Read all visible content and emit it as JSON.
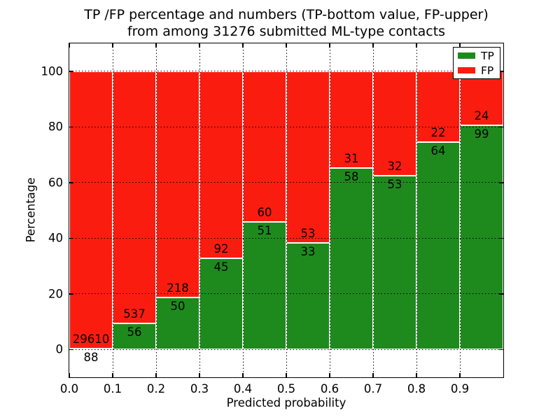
{
  "figure": {
    "title_line1": "TP /FP percentage and numbers (TP-bottom value, FP-upper)",
    "title_line2": "from among 31276 submitted ML-type contacts"
  },
  "legend": {
    "position": "upper right",
    "items": [
      {
        "label": "TP"
      },
      {
        "label": "FP"
      }
    ]
  },
  "colors": {
    "tp_green": "#1e8a1e",
    "fp_red": "#fb1c10",
    "grid": "#000000",
    "axis": "#000000",
    "background": "#ffffff",
    "text": "#000000"
  },
  "chart_data": {
    "type": "bar",
    "stacked": true,
    "normalized_to_percent": true,
    "title": "TP /FP percentage and numbers (TP-bottom value, FP-upper)\nfrom among 31276 submitted ML-type contacts",
    "xlabel": "Predicted probability",
    "ylabel": "Percentage",
    "xlim": [
      0.0,
      1.0
    ],
    "ylim": [
      -10,
      110
    ],
    "xticks": [
      "0.0",
      "0.1",
      "0.2",
      "0.3",
      "0.4",
      "0.5",
      "0.6",
      "0.7",
      "0.8",
      "0.9"
    ],
    "yticks": [
      "0",
      "20",
      "40",
      "60",
      "80",
      "100"
    ],
    "ytick_values": [
      0,
      20,
      40,
      60,
      80,
      100
    ],
    "xtick_values": [
      0.0,
      0.1,
      0.2,
      0.3,
      0.4,
      0.5,
      0.6,
      0.7,
      0.8,
      0.9
    ],
    "grid": true,
    "grid_style": "dotted",
    "legend_position": "upper right",
    "bin_width": 0.1,
    "bin_starts": [
      0.0,
      0.1,
      0.2,
      0.3,
      0.4,
      0.5,
      0.6,
      0.7,
      0.8,
      0.9
    ],
    "series": [
      {
        "name": "TP",
        "color": "green",
        "counts": [
          88,
          56,
          50,
          45,
          51,
          33,
          58,
          53,
          64,
          99
        ]
      },
      {
        "name": "FP",
        "color": "red",
        "counts": [
          29610,
          537,
          218,
          92,
          60,
          53,
          31,
          32,
          22,
          24
        ]
      }
    ],
    "total_submitted": 31276
  }
}
